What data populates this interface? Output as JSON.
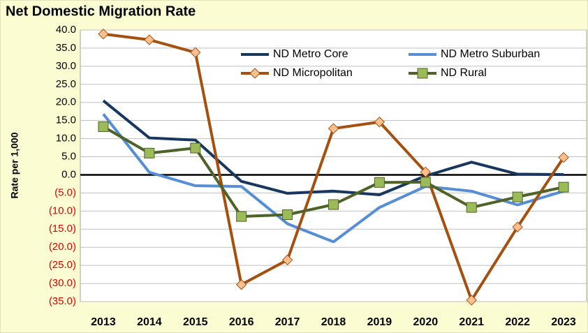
{
  "chart_data": {
    "type": "line",
    "title": "Net Domestic Migration Rate",
    "y_label": "Rate per 1,000",
    "categories": [
      "2013",
      "2014",
      "2015",
      "2016",
      "2017",
      "2018",
      "2019",
      "2020",
      "2021",
      "2022",
      "2023"
    ],
    "series": [
      {
        "name": "ND Metro Core",
        "color": "#17375e",
        "values": [
          20.5,
          10.2,
          9.6,
          -1.8,
          -5.1,
          -4.5,
          -5.5,
          -0.3,
          3.5,
          0.2,
          0.1
        ]
      },
      {
        "name": "ND Metro Suburban",
        "color": "#558ed5",
        "values": [
          16.8,
          0.7,
          -3.0,
          -3.2,
          -13.5,
          -18.5,
          -9.0,
          -3.2,
          -4.5,
          -8.3,
          -4.5
        ]
      },
      {
        "name": "ND Micropolitan",
        "color": "#a5500f",
        "marker": "diamond",
        "marker_color": "#fac090",
        "values": [
          38.9,
          37.3,
          33.8,
          -30.3,
          -23.5,
          12.8,
          14.6,
          0.8,
          -34.6,
          -14.4,
          4.8
        ]
      },
      {
        "name": "ND Rural",
        "color": "#4f6228",
        "marker": "square",
        "marker_color": "#9bbb59",
        "values": [
          13.3,
          6.0,
          7.4,
          -11.5,
          -11.0,
          -8.2,
          -2.1,
          -2.0,
          -9.0,
          -6.1,
          -3.4
        ]
      }
    ],
    "ylim": [
      -35,
      40
    ],
    "yticks": [
      {
        "value": 40,
        "label": "40.0"
      },
      {
        "value": 35,
        "label": "35.0"
      },
      {
        "value": 30,
        "label": "30.0"
      },
      {
        "value": 25,
        "label": "25.0"
      },
      {
        "value": 20,
        "label": "20.0"
      },
      {
        "value": 15,
        "label": "15.0"
      },
      {
        "value": 10,
        "label": "10.0"
      },
      {
        "value": 5,
        "label": "5.0"
      },
      {
        "value": 0,
        "label": "0.0"
      },
      {
        "value": -5,
        "label": "(5.0)"
      },
      {
        "value": -10,
        "label": "(10.0)"
      },
      {
        "value": -15,
        "label": "(15.0)"
      },
      {
        "value": -20,
        "label": "(20.0)"
      },
      {
        "value": -25,
        "label": "(25.0)"
      },
      {
        "value": -30,
        "label": "(30.0)"
      },
      {
        "value": -35,
        "label": "(35.0)"
      }
    ],
    "grid": true,
    "legend": "top"
  }
}
